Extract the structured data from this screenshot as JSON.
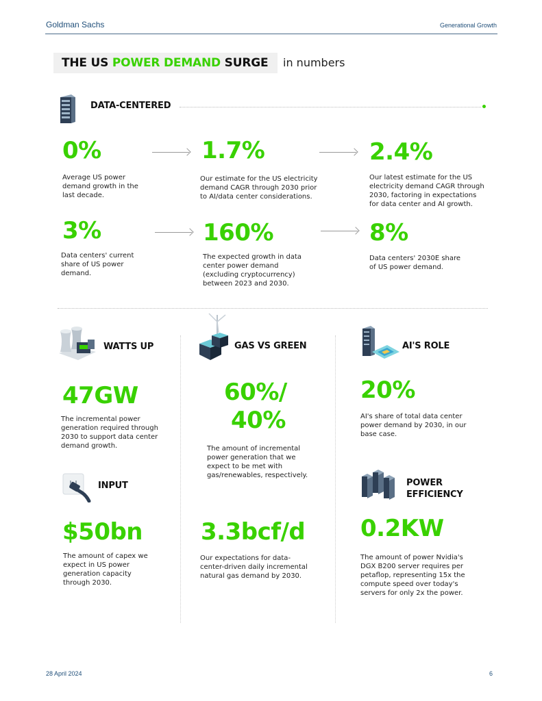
{
  "header": {
    "brand": "Goldman Sachs",
    "section": "Generational Growth"
  },
  "title": {
    "part1": "THE US ",
    "highlight": "POWER DEMAND",
    "part2": " SURGE",
    "suffix": "in numbers"
  },
  "data_centered": {
    "label": "DATA-CENTERED",
    "icon": "server-rack-icon",
    "row1": [
      {
        "value": "0%",
        "desc": [
          "Average US power",
          "demand growth in the",
          "last decade."
        ]
      },
      {
        "value": "1.7%",
        "desc": [
          "Our estimate for the US electricity",
          "demand CAGR through 2030 prior",
          "to AI/data center considerations."
        ]
      },
      {
        "value": "2.4%",
        "desc": [
          "Our latest estimate for the US",
          "electricity demand CAGR through",
          "2030, factoring in expectations",
          "for data center and AI growth."
        ]
      }
    ],
    "row2": [
      {
        "value": "3%",
        "desc": [
          "Data centers' current",
          "share of US power",
          "demand."
        ]
      },
      {
        "value": "160%",
        "desc": [
          "The expected growth in data",
          "center power demand",
          "(excluding cryptocurrency)",
          "between 2023 and 2030."
        ]
      },
      {
        "value": "8%",
        "desc": [
          "Data centers' 2030E share",
          "of US power demand."
        ]
      }
    ]
  },
  "watts_up": {
    "label": "WATTS UP",
    "icon": "power-plant-icon",
    "value": "47GW",
    "desc": [
      "The incremental power",
      "generation required through",
      "2030 to support data center",
      "demand growth."
    ]
  },
  "gas_vs_green": {
    "label": "GAS VS GREEN",
    "icon": "wind-turbine-icon",
    "value_line1": "60%/",
    "value_line2": "40%",
    "desc": [
      "The amount of incremental",
      "power generation that we",
      "expect to be met with",
      "gas/renewables, respectively."
    ]
  },
  "ais_role": {
    "label": "AI'S ROLE",
    "icon": "ai-chip-server-icon",
    "value": "20%",
    "desc": [
      "AI's share of total data center",
      "power demand by 2030, in our",
      "base case."
    ]
  },
  "input": {
    "label": "INPUT",
    "icon": "power-plug-icon",
    "value": "$50bn",
    "desc": [
      "The amount of capex we",
      "expect in US power",
      "generation capacity",
      "through 2030."
    ]
  },
  "gas_demand": {
    "value": "3.3bcf/d",
    "desc": [
      "Our expectations for data-",
      "center-driven daily incremental",
      "natural gas demand by 2030."
    ]
  },
  "power_efficiency": {
    "label_line1": "POWER",
    "label_line2": "EFFICIENCY",
    "icon": "server-cluster-icon",
    "value": "0.2KW",
    "desc": [
      "The amount of power Nvidia's",
      "DGX B200 server requires per",
      "petaflop, representing 15x the",
      "compute speed over today's",
      "servers for only 2x the power."
    ]
  },
  "footer": {
    "date": "28 April 2024",
    "page": "6"
  },
  "colors": {
    "accent": "#39d100",
    "header": "#1f4e79"
  }
}
